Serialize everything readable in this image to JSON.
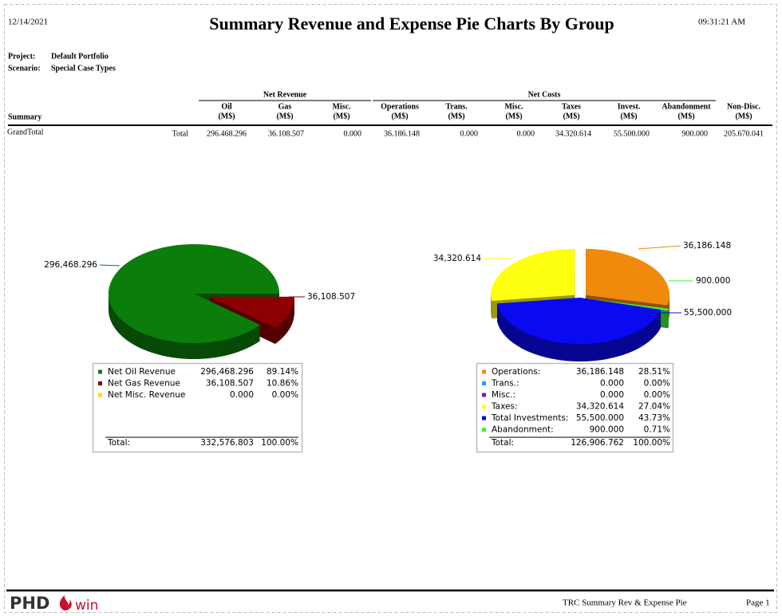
{
  "header": {
    "date": "12/14/2021",
    "title": "Summary Revenue and Expense Pie Charts By Group",
    "time": "09:31:21 AM",
    "project_label": "Project:",
    "project": "Default Portfolio",
    "scenario_label": "Scenario:",
    "scenario": "Special Case Types"
  },
  "table": {
    "groups": [
      "Net Revenue",
      "Net Costs"
    ],
    "row_header": "Summary",
    "columns": [
      [
        "Oil",
        "(M$)"
      ],
      [
        "Gas",
        "(M$)"
      ],
      [
        "Misc.",
        "(M$)"
      ],
      [
        "Operations",
        "(M$)"
      ],
      [
        "Trans.",
        "(M$)"
      ],
      [
        "Misc.",
        "(M$)"
      ],
      [
        "Taxes",
        "(M$)"
      ],
      [
        "Invest.",
        "(M$)"
      ],
      [
        "Abandonment",
        "(M$)"
      ],
      [
        "Non-Disc.",
        "(M$)"
      ]
    ],
    "rows": [
      [
        "GrandTotal",
        "Total",
        "296.468.296",
        "36.108.507",
        "0.000",
        "36.186.148",
        "0.000",
        "0.000",
        "34.320.614",
        "55.500.000",
        "900.000",
        "205.670.041"
      ]
    ]
  },
  "chart_data": [
    {
      "type": "pie",
      "categories": [
        "Net Oil Revenue",
        "Net Gas Revenue",
        "Net Misc. Revenue"
      ],
      "values": [
        296468.296,
        36108.507,
        0
      ],
      "value_labels": [
        "296,468.296",
        "36,108.507",
        "0.000"
      ],
      "percent_labels": [
        "89.14%",
        "10.86%",
        "0.00%"
      ],
      "colors": [
        "#0b7d0b",
        "#8b0000",
        "#ffd700"
      ],
      "total_label": "Total:",
      "total": "332,576.803",
      "total_percent": "100.00%"
    },
    {
      "type": "pie",
      "categories": [
        "Operations:",
        "Trans.:",
        "Misc.:",
        "Taxes:",
        "Total Investments:",
        "Abandonment:"
      ],
      "values": [
        36186.148,
        0,
        0,
        34320.614,
        55500,
        900
      ],
      "value_labels": [
        "36,186.148",
        "0.000",
        "0.000",
        "34,320.614",
        "55,500.000",
        "900.000"
      ],
      "percent_labels": [
        "28.51%",
        "0.00%",
        "0.00%",
        "27.04%",
        "43.73%",
        "0.71%"
      ],
      "colors": [
        "#f08a0c",
        "#2a9df4",
        "#8b1a8b",
        "#ffff10",
        "#0a0af0",
        "#3cf23c"
      ],
      "total_label": "Total:",
      "total": "126,906.762",
      "total_percent": "100.00%"
    }
  ],
  "footer": {
    "logo": "PHD",
    "logo_suffix": "win",
    "report": "TRC Summary Rev & Expense Pie",
    "page": "Page 1"
  }
}
